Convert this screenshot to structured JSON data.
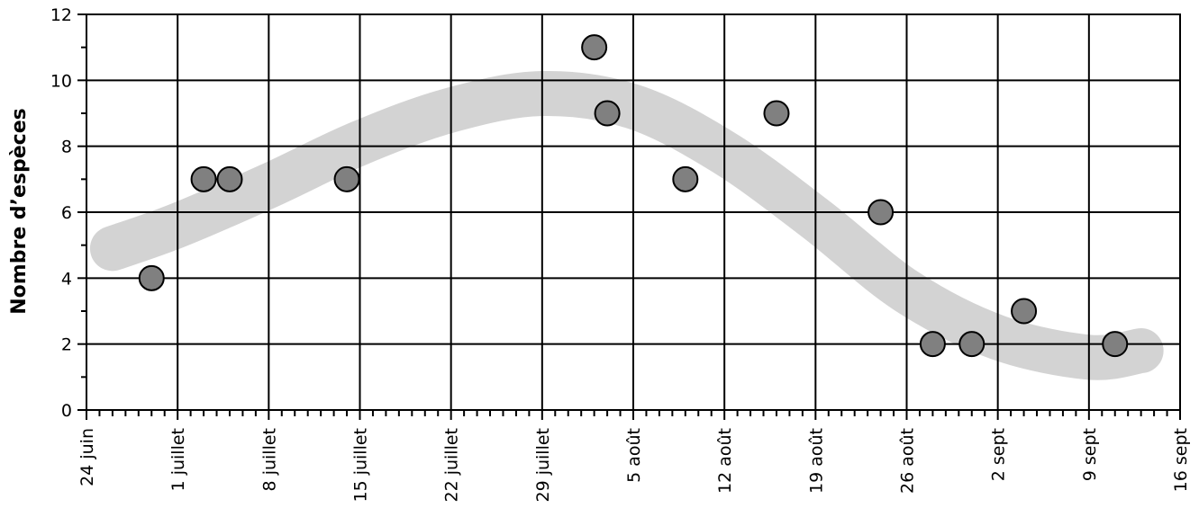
{
  "chart_data": {
    "type": "scatter",
    "title": "",
    "xlabel": "",
    "ylabel": "Nombre d’espèces",
    "ylim": [
      0,
      12
    ],
    "y_ticks": [
      0,
      2,
      4,
      6,
      8,
      10,
      12
    ],
    "xlim": [
      "2015-06-24",
      "2015-09-16"
    ],
    "x_ticks": [
      {
        "date": "2015-06-24",
        "label": "24 juin"
      },
      {
        "date": "2015-07-01",
        "label": "1 juillet"
      },
      {
        "date": "2015-07-08",
        "label": "8 juillet"
      },
      {
        "date": "2015-07-15",
        "label": "15 juillet"
      },
      {
        "date": "2015-07-22",
        "label": "22 juillet"
      },
      {
        "date": "2015-07-29",
        "label": "29 juillet"
      },
      {
        "date": "2015-08-05",
        "label": "5 août"
      },
      {
        "date": "2015-08-12",
        "label": "12 août"
      },
      {
        "date": "2015-08-19",
        "label": "19 août"
      },
      {
        "date": "2015-08-26",
        "label": "26 août"
      },
      {
        "date": "2015-09-02",
        "label": "2 sept"
      },
      {
        "date": "2015-09-09",
        "label": "9 sept"
      },
      {
        "date": "2015-09-16",
        "label": "16 sept"
      }
    ],
    "grid": true,
    "points": [
      {
        "x": "2015-06-29",
        "y": 4
      },
      {
        "x": "2015-07-03",
        "y": 7
      },
      {
        "x": "2015-07-05",
        "y": 7
      },
      {
        "x": "2015-07-14",
        "y": 7
      },
      {
        "x": "2015-08-02",
        "y": 11
      },
      {
        "x": "2015-08-03",
        "y": 9
      },
      {
        "x": "2015-08-09",
        "y": 7
      },
      {
        "x": "2015-08-16",
        "y": 9
      },
      {
        "x": "2015-08-24",
        "y": 6
      },
      {
        "x": "2015-08-28",
        "y": 2
      },
      {
        "x": "2015-08-31",
        "y": 2
      },
      {
        "x": "2015-09-04",
        "y": 3
      },
      {
        "x": "2015-09-11",
        "y": 2
      }
    ],
    "trend": [
      {
        "x": "2015-06-26",
        "y": 4.9
      },
      {
        "x": "2015-07-01",
        "y": 5.6
      },
      {
        "x": "2015-07-08",
        "y": 6.8
      },
      {
        "x": "2015-07-15",
        "y": 8.1
      },
      {
        "x": "2015-07-22",
        "y": 9.1
      },
      {
        "x": "2015-07-29",
        "y": 9.6
      },
      {
        "x": "2015-08-05",
        "y": 9.2
      },
      {
        "x": "2015-08-12",
        "y": 7.8
      },
      {
        "x": "2015-08-19",
        "y": 5.8
      },
      {
        "x": "2015-08-26",
        "y": 3.6
      },
      {
        "x": "2015-09-02",
        "y": 2.2
      },
      {
        "x": "2015-09-09",
        "y": 1.6
      },
      {
        "x": "2015-09-13",
        "y": 1.8
      }
    ],
    "colors": {
      "marker_fill": "#808080",
      "marker_stroke": "#000000",
      "trend_band": "#d3d3d3",
      "grid": "#000000"
    }
  }
}
